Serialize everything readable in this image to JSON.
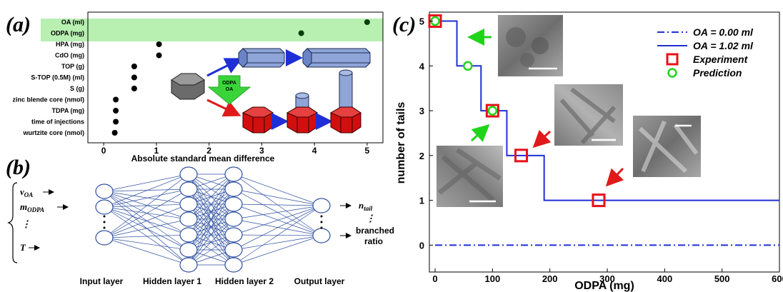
{
  "panels": {
    "a": "(a)",
    "b": "(b)",
    "c": "(c)"
  },
  "panel_a": {
    "xlabel": "Absolute standard mean difference",
    "xticks": [
      "0",
      "1",
      "2",
      "3",
      "4",
      "5"
    ],
    "arrow_label_top": "ODPA",
    "arrow_label_bottom": "OA",
    "highlight_color": "#b7f0b0"
  },
  "panel_b": {
    "inputs": {
      "v": "v",
      "v_sub": "OA",
      "m": "m",
      "m_sub": "ODPA",
      "dots": "⋮",
      "T": "T"
    },
    "outputs": {
      "n": "n",
      "n_sub": "tail",
      "dots": "⋮",
      "branched": "branched",
      "ratio": "ratio"
    },
    "layers": [
      "Input layer",
      "Hidden layer 1",
      "Hidden layer 2",
      "Output layer"
    ],
    "node_color": "#2e4fa0"
  },
  "chart_data": [
    {
      "type": "scatter",
      "panel": "a",
      "xlabel": "Absolute standard mean difference",
      "xlim": [
        -0.3,
        5.3
      ],
      "xticks": [
        0,
        1,
        2,
        3,
        4,
        5
      ],
      "categories": [
        "OA (ml)",
        "ODPA (mg)",
        "HPA (mg)",
        "CdO (mg)",
        "TOP (g)",
        "S-TOP (0.5M) (ml)",
        "S (g)",
        "zinc blende core (nmol)",
        "TDPA (mg)",
        "time of injections",
        "wurtzite core (nmol)"
      ],
      "values": [
        5.0,
        3.75,
        1.05,
        1.05,
        0.58,
        0.58,
        0.58,
        0.23,
        0.23,
        0.23,
        0.21
      ],
      "highlighted": [
        "OA (ml)",
        "ODPA (mg)"
      ]
    },
    {
      "type": "line",
      "panel": "c",
      "xlabel": "ODPA (mg)",
      "ylabel": "number of tails",
      "xlim": [
        -10,
        600
      ],
      "ylim": [
        -0.6,
        5.2
      ],
      "xticks": [
        0,
        100,
        200,
        300,
        400,
        500,
        600
      ],
      "yticks": [
        0,
        1,
        2,
        3,
        4,
        5
      ],
      "series": [
        {
          "name": "OA = 0.00 ml",
          "style": "dash-dot",
          "color": "#1f2fd6",
          "x": [
            0,
            600
          ],
          "y": [
            0,
            0
          ]
        },
        {
          "name": "OA = 1.02 ml",
          "style": "solid",
          "color": "#1f2fd6",
          "x": [
            0,
            38,
            38,
            80,
            80,
            125,
            125,
            190,
            190,
            600
          ],
          "y": [
            5,
            5,
            4,
            4,
            3,
            3,
            2,
            2,
            1,
            1
          ]
        },
        {
          "name": "Experiment",
          "marker": "square",
          "color": "#e8101a",
          "x": [
            0,
            100,
            150,
            285
          ],
          "y": [
            5,
            3,
            2,
            1
          ]
        },
        {
          "name": "Prediction",
          "marker": "circle",
          "color": "#22d31c",
          "x": [
            0,
            57,
            100
          ],
          "y": [
            5,
            4,
            3
          ]
        }
      ],
      "legend_position": "top-right"
    }
  ]
}
